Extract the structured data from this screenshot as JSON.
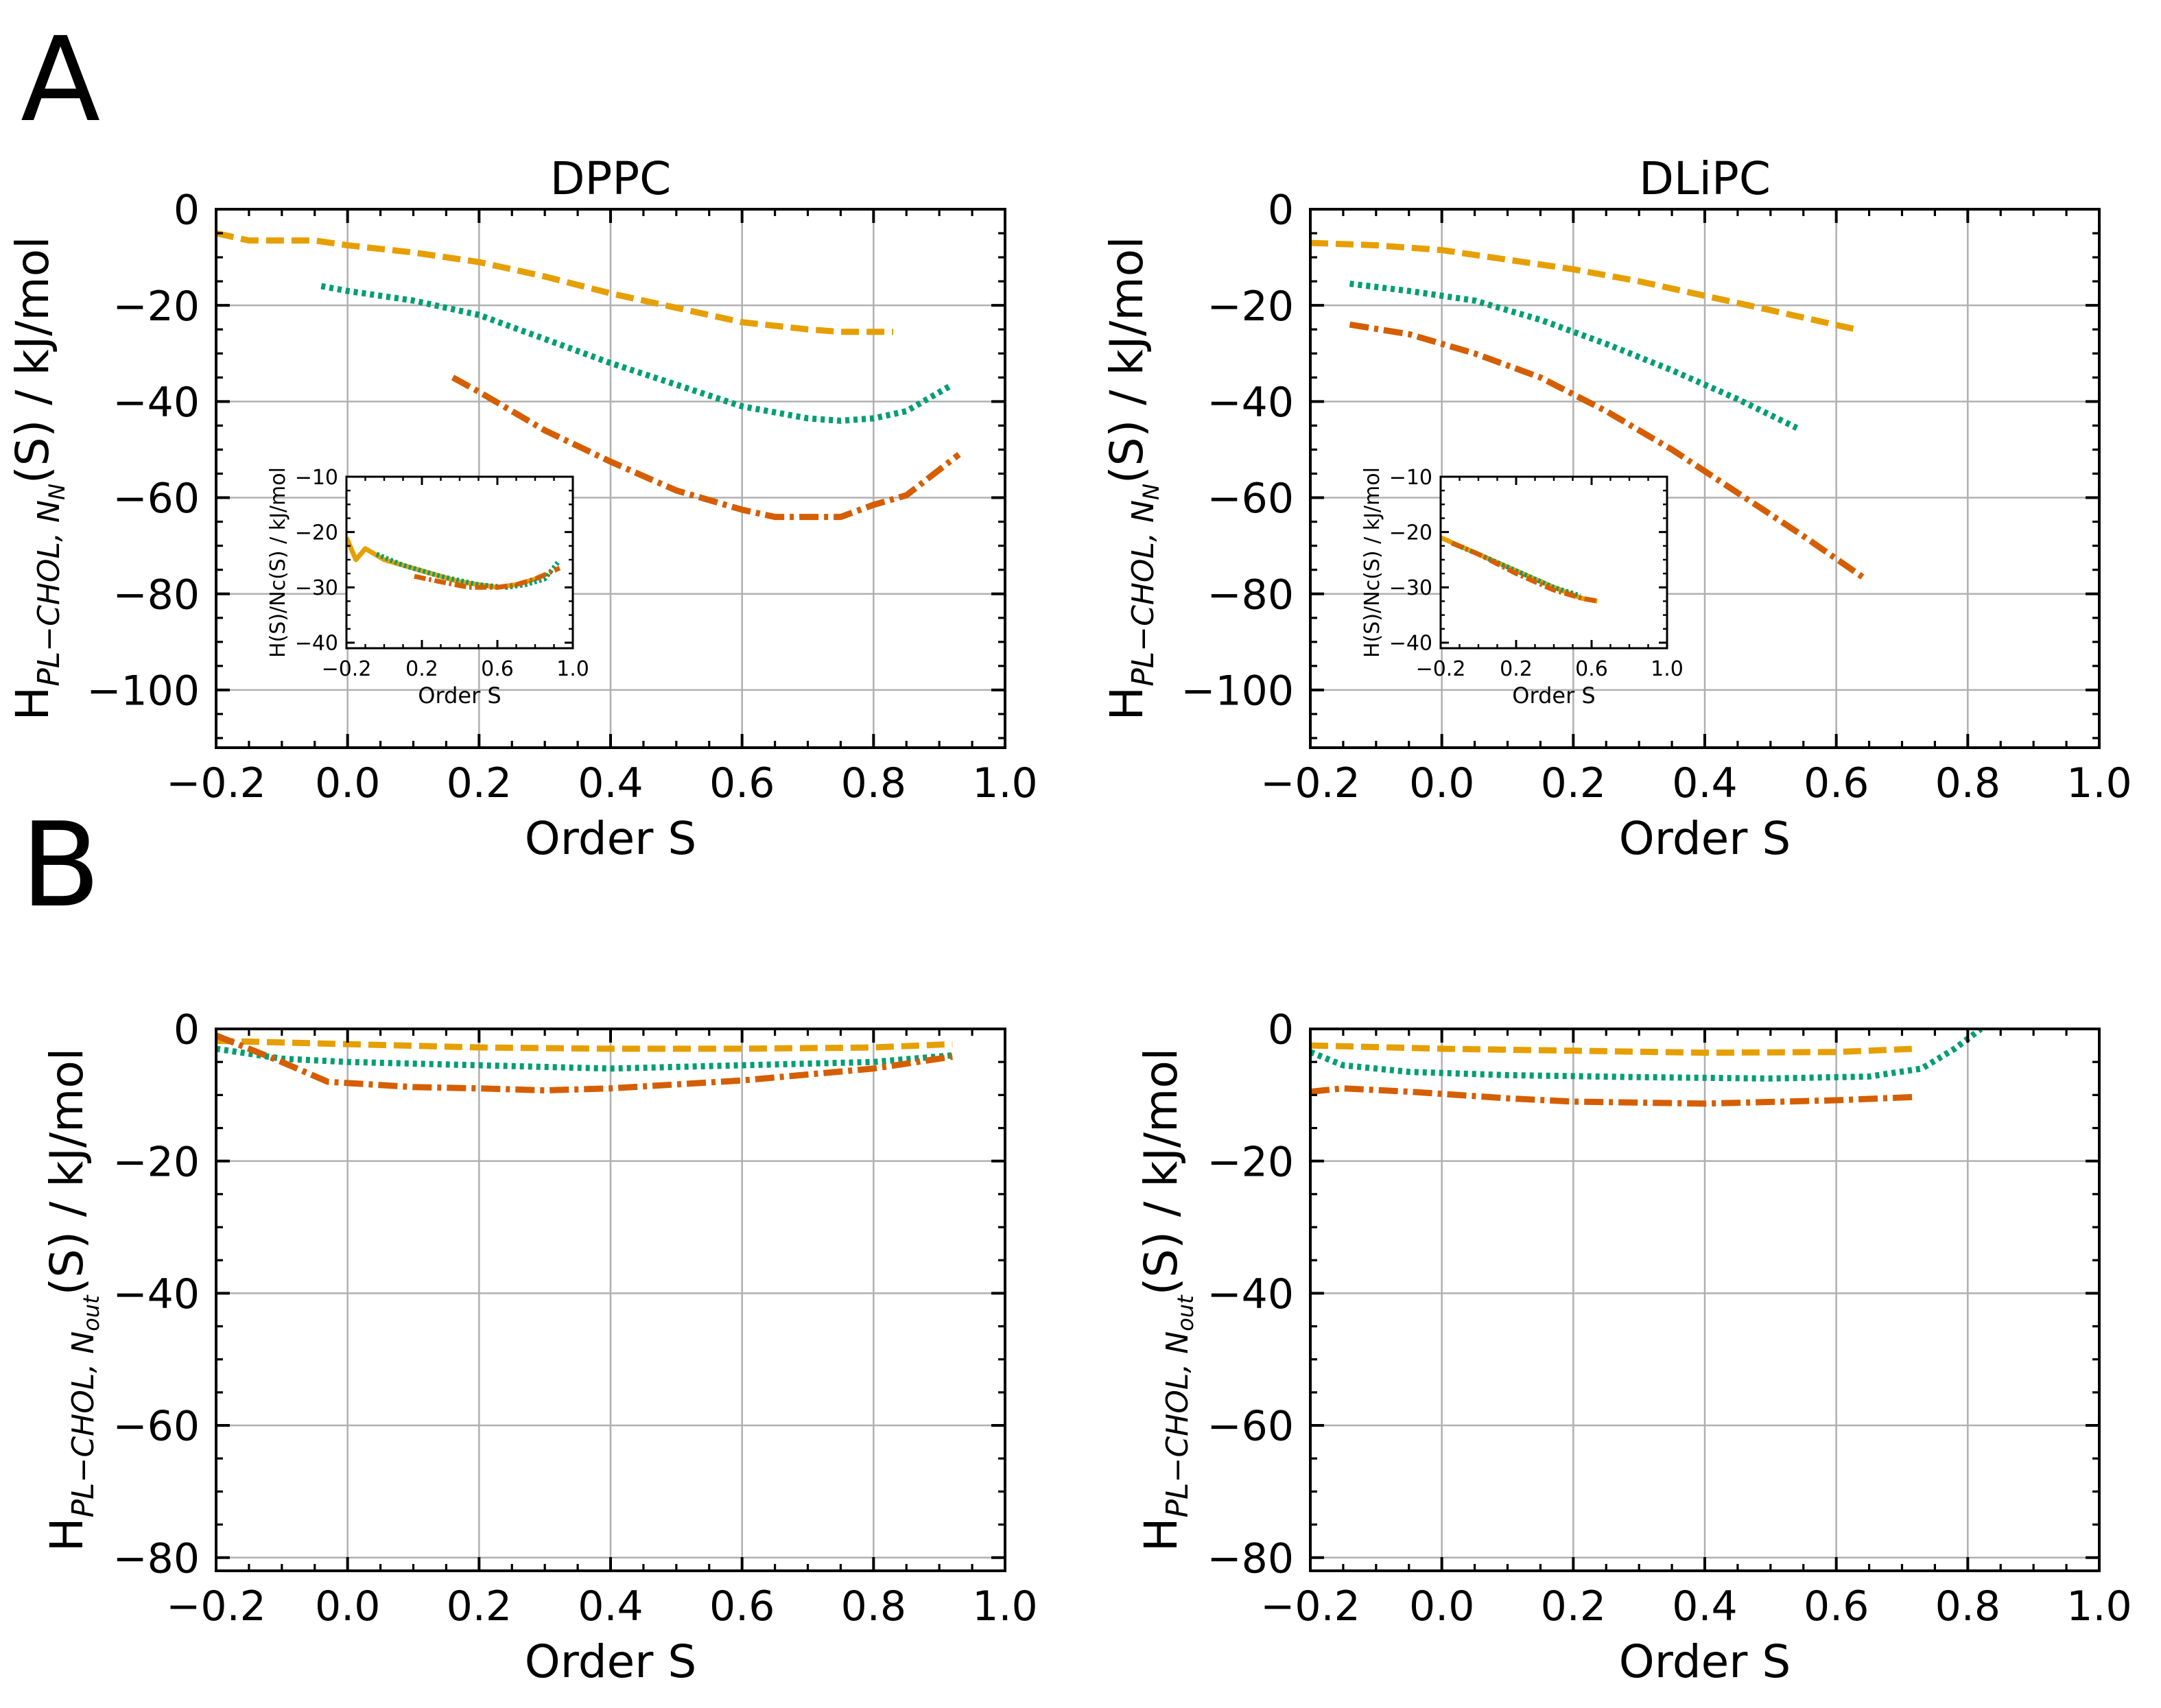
{
  "figure": {
    "panel_letters": [
      "A",
      "B"
    ]
  },
  "chart_data": [
    {
      "id": "A_DPPC",
      "type": "line",
      "title": "DPPC",
      "xlabel": "Order S",
      "ylabel_main": "H",
      "ylabel_sub": "PL−CHOL, N",
      "ylabel_subsub": "N",
      "ylabel_tail": "(S) / kJ/mol",
      "xlim": [
        -0.2,
        1.0
      ],
      "ylim": [
        -112,
        0
      ],
      "xticks": [
        -0.2,
        0.0,
        0.2,
        0.4,
        0.6,
        0.8,
        1.0
      ],
      "xtick_labels": [
        "−0.2",
        "0.0",
        "0.2",
        "0.4",
        "0.6",
        "0.8",
        "1.0"
      ],
      "yticks": [
        0,
        -20,
        -40,
        -60,
        -80,
        -100
      ],
      "ytick_labels": [
        "0",
        "−20",
        "−40",
        "−60",
        "−80",
        "−100"
      ],
      "grid": true,
      "series": [
        {
          "name": "dashed",
          "color": "#E69F00",
          "style": "dashed",
          "x": [
            -0.2,
            -0.15,
            -0.1,
            -0.05,
            0.0,
            0.1,
            0.2,
            0.3,
            0.4,
            0.5,
            0.6,
            0.7,
            0.75,
            0.83
          ],
          "y": [
            -5,
            -6.5,
            -6.5,
            -6.5,
            -7.5,
            -9,
            -11,
            -14,
            -17.5,
            -20.5,
            -23.5,
            -25,
            -25.5,
            -25.5
          ]
        },
        {
          "name": "dotted",
          "color": "#009E73",
          "style": "dotted",
          "x": [
            -0.04,
            0.0,
            0.1,
            0.2,
            0.3,
            0.4,
            0.5,
            0.6,
            0.7,
            0.75,
            0.8,
            0.85,
            0.92
          ],
          "y": [
            -16,
            -17,
            -19,
            -22,
            -27,
            -32,
            -36.5,
            -41,
            -43.5,
            -44,
            -43.5,
            -42,
            -36.5
          ]
        },
        {
          "name": "dashdot",
          "color": "#D55E00",
          "style": "dashdot",
          "x": [
            0.16,
            0.2,
            0.3,
            0.4,
            0.5,
            0.6,
            0.65,
            0.7,
            0.75,
            0.8,
            0.85,
            0.93
          ],
          "y": [
            -35,
            -38,
            -46,
            -52.5,
            -58.5,
            -62.5,
            -64,
            -64,
            -64,
            -61.5,
            -59.5,
            -51
          ]
        }
      ],
      "inset": {
        "xlabel": "Order S",
        "ylabel": "H(S)/Nc(S) / kJ/mol",
        "xlim": [
          -0.2,
          1.0
        ],
        "ylim": [
          -41,
          -10
        ],
        "xticks": [
          -0.2,
          0.2,
          0.6,
          1.0
        ],
        "xtick_labels": [
          "−0.2",
          "0.2",
          "0.6",
          "1.0"
        ],
        "yticks": [
          -10,
          -20,
          -30,
          -40
        ],
        "ytick_labels": [
          "−10",
          "−20",
          "−30",
          "−40"
        ],
        "series": [
          {
            "name": "dashed",
            "color": "#E69F00",
            "style": "solid",
            "x": [
              -0.2,
              -0.15,
              -0.1,
              -0.05,
              0.0,
              0.2,
              0.4,
              0.6,
              0.7,
              0.8,
              0.83
            ],
            "y": [
              -21,
              -25,
              -23,
              -24,
              -25,
              -27,
              -29,
              -30,
              -29.5,
              -28.5,
              -28
            ]
          },
          {
            "name": "dotted",
            "color": "#009E73",
            "style": "dotted",
            "x": [
              -0.04,
              0.1,
              0.3,
              0.5,
              0.65,
              0.75,
              0.85,
              0.92
            ],
            "y": [
              -24,
              -26,
              -28,
              -29.5,
              -30,
              -29.5,
              -28.5,
              -25.5
            ]
          },
          {
            "name": "dashdot",
            "color": "#D55E00",
            "style": "dashdot",
            "x": [
              0.16,
              0.3,
              0.45,
              0.6,
              0.7,
              0.8,
              0.93
            ],
            "y": [
              -28,
              -29,
              -30,
              -30,
              -29.5,
              -28.5,
              -26.5
            ]
          }
        ]
      }
    },
    {
      "id": "A_DLiPC",
      "type": "line",
      "title": "DLiPC",
      "xlabel": "Order S",
      "ylabel_main": "H",
      "ylabel_sub": "PL−CHOL, N",
      "ylabel_subsub": "N",
      "ylabel_tail": "(S) / kJ/mol",
      "xlim": [
        -0.2,
        1.0
      ],
      "ylim": [
        -112,
        0
      ],
      "xticks": [
        -0.2,
        0.0,
        0.2,
        0.4,
        0.6,
        0.8,
        1.0
      ],
      "xtick_labels": [
        "−0.2",
        "0.0",
        "0.2",
        "0.4",
        "0.6",
        "0.8",
        "1.0"
      ],
      "yticks": [
        0,
        -20,
        -40,
        -60,
        -80,
        -100
      ],
      "ytick_labels": [
        "0",
        "−20",
        "−40",
        "−60",
        "−80",
        "−100"
      ],
      "grid": true,
      "series": [
        {
          "name": "dashed",
          "color": "#E69F00",
          "style": "dashed",
          "x": [
            -0.2,
            -0.1,
            0.0,
            0.1,
            0.2,
            0.3,
            0.4,
            0.5,
            0.63
          ],
          "y": [
            -7,
            -7.5,
            -8.5,
            -10.5,
            -12.5,
            -15,
            -18,
            -21,
            -25
          ]
        },
        {
          "name": "dotted",
          "color": "#009E73",
          "style": "dotted",
          "x": [
            -0.14,
            -0.05,
            0.05,
            0.15,
            0.25,
            0.35,
            0.45,
            0.54
          ],
          "y": [
            -15.5,
            -17,
            -19,
            -23,
            -28,
            -33.5,
            -39.5,
            -45.5
          ]
        },
        {
          "name": "dashdot",
          "color": "#D55E00",
          "style": "dashdot",
          "x": [
            -0.14,
            -0.05,
            0.05,
            0.15,
            0.25,
            0.35,
            0.45,
            0.55,
            0.64
          ],
          "y": [
            -24,
            -26,
            -30,
            -35,
            -42,
            -50,
            -59,
            -68,
            -76.5
          ]
        }
      ],
      "inset": {
        "xlabel": "Order S",
        "ylabel": "H(S)/Nc(S) / kJ/mol",
        "xlim": [
          -0.2,
          1.0
        ],
        "ylim": [
          -41,
          -10
        ],
        "xticks": [
          -0.2,
          0.2,
          0.6,
          1.0
        ],
        "xtick_labels": [
          "−0.2",
          "0.2",
          "0.6",
          "1.0"
        ],
        "yticks": [
          -10,
          -20,
          -30,
          -40
        ],
        "ytick_labels": [
          "−10",
          "−20",
          "−30",
          "−40"
        ],
        "series": [
          {
            "name": "dashed",
            "color": "#E69F00",
            "style": "solid",
            "x": [
              -0.2,
              0.0,
              0.2,
              0.4,
              0.55,
              0.63
            ],
            "y": [
              -21,
              -24,
              -27,
              -30,
              -32,
              -32.5
            ]
          },
          {
            "name": "dotted",
            "color": "#009E73",
            "style": "dotted",
            "x": [
              -0.14,
              0.0,
              0.2,
              0.4,
              0.54
            ],
            "y": [
              -22,
              -24,
              -27,
              -30,
              -31.5
            ]
          },
          {
            "name": "dashdot",
            "color": "#D55E00",
            "style": "dashdot",
            "x": [
              -0.14,
              0.0,
              0.2,
              0.4,
              0.55,
              0.64
            ],
            "y": [
              -22,
              -24,
              -27.5,
              -30.5,
              -32,
              -32.5
            ]
          }
        ]
      }
    },
    {
      "id": "B_DPPC",
      "type": "line",
      "title": "",
      "xlabel": "Order S",
      "ylabel_main": "H",
      "ylabel_sub": "PL−CHOL, N",
      "ylabel_subsub": "out",
      "ylabel_tail": "(S) / kJ/mol",
      "xlim": [
        -0.2,
        1.0
      ],
      "ylim": [
        -82,
        0
      ],
      "xticks": [
        -0.2,
        0.0,
        0.2,
        0.4,
        0.6,
        0.8,
        1.0
      ],
      "xtick_labels": [
        "−0.2",
        "0.0",
        "0.2",
        "0.4",
        "0.6",
        "0.8",
        "1.0"
      ],
      "yticks": [
        0,
        -20,
        -40,
        -60,
        -80
      ],
      "ytick_labels": [
        "0",
        "−20",
        "−40",
        "−60",
        "−80"
      ],
      "grid": true,
      "series": [
        {
          "name": "dashed",
          "color": "#E69F00",
          "style": "dashed",
          "x": [
            -0.2,
            0.0,
            0.2,
            0.4,
            0.6,
            0.8,
            0.92
          ],
          "y": [
            -1.8,
            -2.3,
            -2.8,
            -3.0,
            -3.0,
            -2.8,
            -2.3
          ]
        },
        {
          "name": "dotted",
          "color": "#009E73",
          "style": "dotted",
          "x": [
            -0.2,
            -0.1,
            0.0,
            0.2,
            0.4,
            0.6,
            0.8,
            0.92
          ],
          "y": [
            -3.0,
            -4.5,
            -5.0,
            -5.5,
            -6.0,
            -5.5,
            -5.0,
            -4.0
          ]
        },
        {
          "name": "dashdot",
          "color": "#D55E00",
          "style": "dashdot",
          "x": [
            -0.2,
            -0.1,
            -0.03,
            0.1,
            0.2,
            0.3,
            0.4,
            0.6,
            0.8,
            0.92
          ],
          "y": [
            -1.0,
            -5.0,
            -8.0,
            -8.8,
            -9.0,
            -9.3,
            -9.0,
            -7.8,
            -6.0,
            -4.2
          ]
        }
      ]
    },
    {
      "id": "B_DLiPC",
      "type": "line",
      "title": "",
      "xlabel": "Order S",
      "ylabel_main": "H",
      "ylabel_sub": "PL−CHOL, N",
      "ylabel_subsub": "out",
      "ylabel_tail": "(S) / kJ/mol",
      "xlim": [
        -0.2,
        1.0
      ],
      "ylim": [
        -82,
        0
      ],
      "xticks": [
        -0.2,
        0.0,
        0.2,
        0.4,
        0.6,
        0.8,
        1.0
      ],
      "xtick_labels": [
        "−0.2",
        "0.0",
        "0.2",
        "0.4",
        "0.6",
        "0.8",
        "1.0"
      ],
      "yticks": [
        0,
        -20,
        -40,
        -60,
        -80
      ],
      "ytick_labels": [
        "0",
        "−20",
        "−40",
        "−60",
        "−80"
      ],
      "grid": true,
      "series": [
        {
          "name": "dashed",
          "color": "#E69F00",
          "style": "dashed",
          "x": [
            -0.2,
            0.0,
            0.2,
            0.4,
            0.6,
            0.72
          ],
          "y": [
            -2.5,
            -3.0,
            -3.3,
            -3.6,
            -3.5,
            -3.0
          ]
        },
        {
          "name": "dotted",
          "color": "#009E73",
          "style": "dotted",
          "x": [
            -0.2,
            -0.15,
            -0.05,
            0.1,
            0.3,
            0.5,
            0.65,
            0.73,
            0.78,
            0.82
          ],
          "y": [
            -3.5,
            -5.5,
            -6.5,
            -7.0,
            -7.3,
            -7.5,
            -7.2,
            -6.0,
            -3.0,
            0.0
          ]
        },
        {
          "name": "dashdot",
          "color": "#D55E00",
          "style": "dashdot",
          "x": [
            -0.2,
            -0.15,
            -0.05,
            0.1,
            0.2,
            0.4,
            0.6,
            0.72
          ],
          "y": [
            -9.5,
            -9.0,
            -9.5,
            -10.5,
            -11.0,
            -11.3,
            -10.8,
            -10.3
          ]
        }
      ]
    }
  ]
}
